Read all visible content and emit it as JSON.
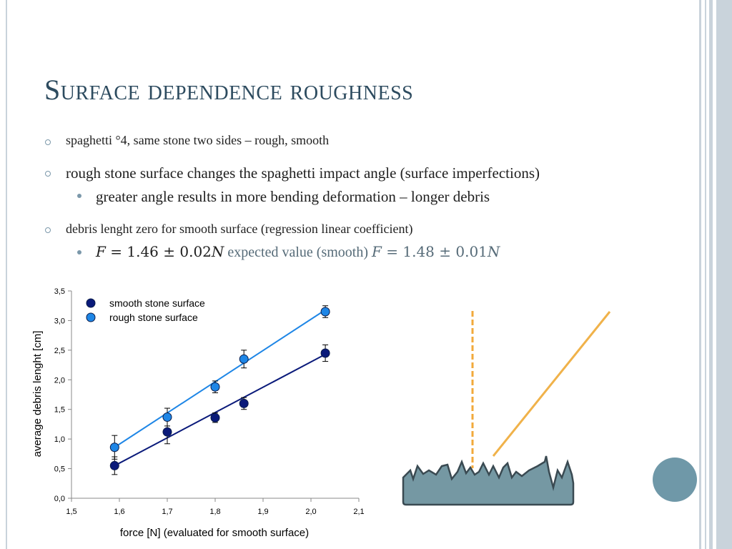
{
  "slide": {
    "title": "Surface dependence roughness",
    "bullets": [
      {
        "level": 1,
        "text": "spaghetti °4, same stone two sides – rough, smooth"
      },
      {
        "level": 1,
        "text": "rough stone surface changes the spaghetti impact angle (surface imperfections)"
      },
      {
        "level": 2,
        "text": "greater angle results in more bending deformation – longer debris"
      },
      {
        "level": 1,
        "text": "debris lenght zero for smooth surface (regression linear coefficient)"
      }
    ],
    "formula": {
      "var1": "F",
      "eq1": " = 1.46 ± 0.02",
      "unit1": "N",
      "mid": " expected value (smooth) ",
      "var2": "F",
      "eq2": " = 1.48 ± 0.01",
      "unit2": "N"
    }
  },
  "chart_data": {
    "type": "scatter",
    "xlabel": "force [N] (evaluated for smooth surface)",
    "ylabel": "average debris lenght [cm]",
    "xlim": [
      1.5,
      2.1
    ],
    "ylim": [
      0.0,
      3.5
    ],
    "xticks": [
      "1,5",
      "1,6",
      "1,7",
      "1,8",
      "1,9",
      "2,0",
      "2,1"
    ],
    "yticks": [
      "0,0",
      "0,5",
      "1,0",
      "1,5",
      "2,0",
      "2,5",
      "3,0",
      "3,5"
    ],
    "legend_position": "top-left",
    "series": [
      {
        "name": "smooth stone surface",
        "color": "#0a1a7a",
        "x": [
          1.59,
          1.7,
          1.8,
          1.86,
          2.03
        ],
        "y": [
          0.55,
          1.12,
          1.36,
          1.6,
          2.45
        ],
        "err": [
          0.15,
          0.2,
          0.08,
          0.1,
          0.14
        ],
        "fit": [
          [
            1.59,
            0.55
          ],
          [
            2.03,
            2.43
          ]
        ]
      },
      {
        "name": "rough stone surface",
        "color": "#1e86e6",
        "x": [
          1.59,
          1.7,
          1.8,
          1.86,
          2.03
        ],
        "y": [
          0.86,
          1.37,
          1.88,
          2.35,
          3.15
        ],
        "err": [
          0.2,
          0.15,
          0.1,
          0.15,
          0.1
        ],
        "fit": [
          [
            1.59,
            0.86
          ],
          [
            2.03,
            3.18
          ]
        ]
      }
    ]
  },
  "illustration": {
    "stone_color": "#7598a3",
    "dashed_line_color": "#f2a93b",
    "line_color": "#f0b24a",
    "button_color": "#6f98a8"
  }
}
